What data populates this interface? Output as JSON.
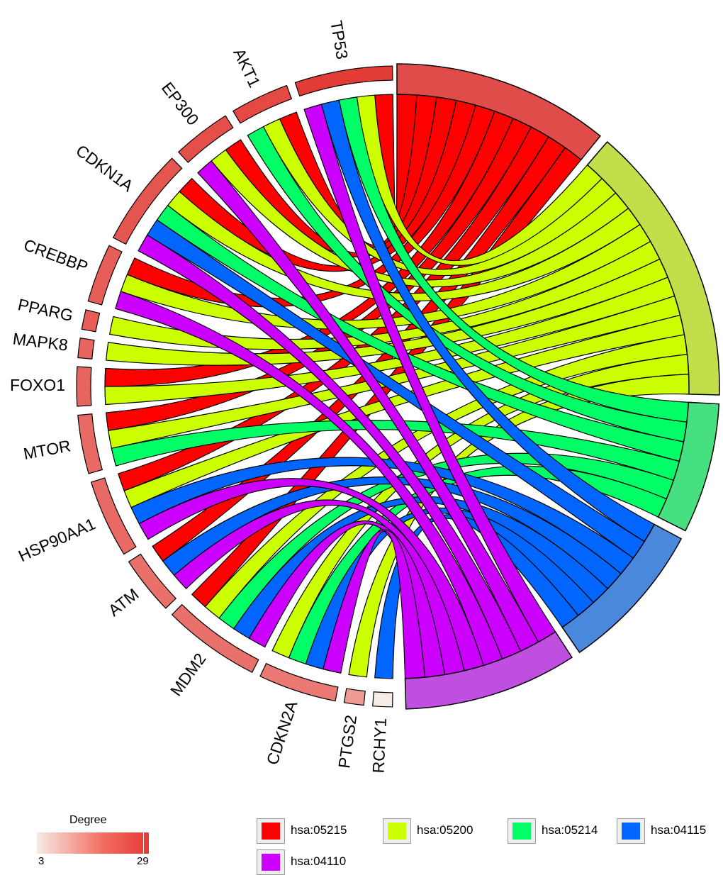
{
  "chart_data": {
    "type": "chord",
    "genes": [
      {
        "name": "TP53",
        "degree": 29
      },
      {
        "name": "AKT1",
        "degree": 27
      },
      {
        "name": "EP300",
        "degree": 26
      },
      {
        "name": "CDKN1A",
        "degree": 25
      },
      {
        "name": "CREBBP",
        "degree": 24
      },
      {
        "name": "PPARG",
        "degree": 24
      },
      {
        "name": "MAPK8",
        "degree": 23
      },
      {
        "name": "FOXO1",
        "degree": 23
      },
      {
        "name": "MTOR",
        "degree": 22
      },
      {
        "name": "HSP90AA1",
        "degree": 22
      },
      {
        "name": "ATM",
        "degree": 21
      },
      {
        "name": "MDM2",
        "degree": 21
      },
      {
        "name": "CDKN2A",
        "degree": 20
      },
      {
        "name": "PTGS2",
        "degree": 15
      },
      {
        "name": "RCHY1",
        "degree": 3
      }
    ],
    "pathways": [
      {
        "id": "hsa:05215",
        "color": "#ff0000",
        "sector_color": "#e04c4a"
      },
      {
        "id": "hsa:05200",
        "color": "#ccff00",
        "sector_color": "#c2de4a"
      },
      {
        "id": "hsa:05214",
        "color": "#00ff66",
        "sector_color": "#47e080"
      },
      {
        "id": "hsa:04115",
        "color": "#0066ff",
        "sector_color": "#4a88dc"
      },
      {
        "id": "hsa:04110",
        "color": "#cc00ff",
        "sector_color": "#c04ee0"
      }
    ],
    "links": {
      "hsa:05215": [
        "TP53",
        "AKT1",
        "EP300",
        "CDKN1A",
        "CREBBP",
        "FOXO1",
        "MTOR",
        "HSP90AA1",
        "ATM",
        "MDM2"
      ],
      "hsa:05200": [
        "TP53",
        "AKT1",
        "EP300",
        "CDKN1A",
        "CREBBP",
        "PPARG",
        "MAPK8",
        "FOXO1",
        "MTOR",
        "HSP90AA1",
        "MDM2",
        "CDKN2A",
        "PTGS2"
      ],
      "hsa:05214": [
        "TP53",
        "AKT1",
        "CDKN1A",
        "MTOR",
        "MDM2",
        "CDKN2A"
      ],
      "hsa:04115": [
        "TP53",
        "CDKN1A",
        "HSP90AA1",
        "ATM",
        "MDM2",
        "CDKN2A",
        "RCHY1"
      ],
      "hsa:04110": [
        "TP53",
        "EP300",
        "CDKN1A",
        "CREBBP",
        "HSP90AA1",
        "ATM",
        "MDM2",
        "CDKN2A"
      ]
    },
    "color_scale": {
      "title": "Degree",
      "min": 3,
      "max": 29,
      "colors": [
        "#f7ebe6",
        "#e33b36"
      ]
    },
    "legend_position": "bottom"
  }
}
